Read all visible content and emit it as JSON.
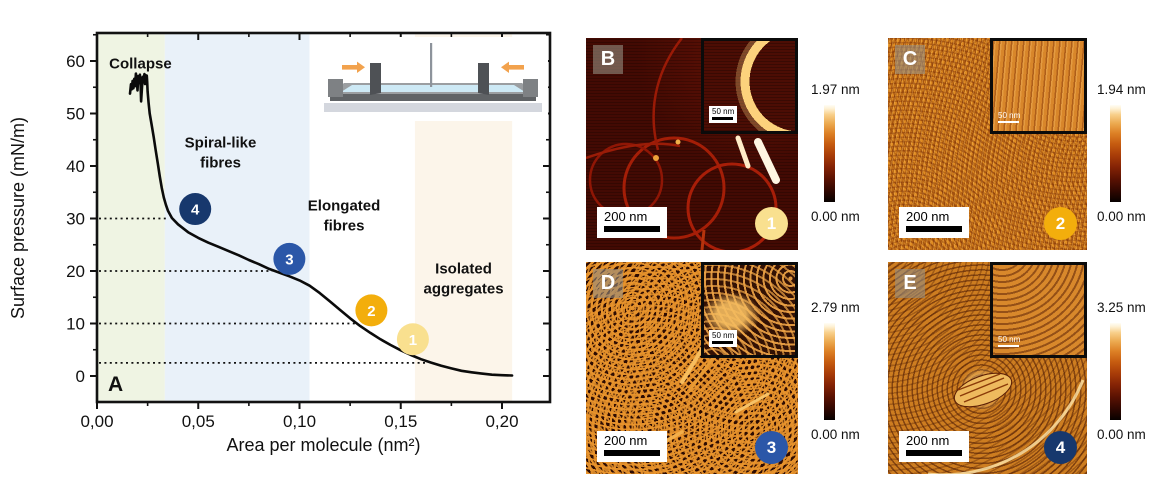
{
  "chart_data": {
    "type": "line",
    "panel_label": "A",
    "xlabel": "Area per molecule (nm²)",
    "ylabel": "Surface pressure (mN/m)",
    "xlim": [
      0,
      0.224
    ],
    "ylim": [
      -5,
      65
    ],
    "x_tick_values": [
      0,
      0.05,
      0.1,
      0.15,
      0.2
    ],
    "x_tick_labels": [
      "0,00",
      "0,05",
      "0,10",
      "0,15",
      "0,20"
    ],
    "x_minor_ticks": [
      0.025,
      0.075,
      0.125,
      0.175
    ],
    "y_tick_values": [
      0,
      10,
      20,
      30,
      40,
      50,
      60
    ],
    "y_tick_labels": [
      "0",
      "10",
      "20",
      "30",
      "40",
      "50",
      "60"
    ],
    "y_minor_ticks": [
      5,
      15,
      25,
      35,
      45,
      55,
      65
    ],
    "regions": [
      {
        "label": "Collapse",
        "x0": 0,
        "x1": 0.0335,
        "band_color": "#eff4e3",
        "text_color": "#8bbf41",
        "text_x": 0.006,
        "text_y": 58.6,
        "align": "start"
      },
      {
        "label": "Spiral-like\nfibres",
        "x0": 0.0335,
        "x1": 0.105,
        "band_color": "#e9f1f9",
        "text_color": "#3a67ad",
        "text_x": 0.061,
        "text_y": 43.5,
        "align": "middle"
      },
      {
        "label": "Elongated\nfibres",
        "x0": 0.105,
        "x1": 0.157,
        "band_color": "#ffffff",
        "text_color": "#edb41d",
        "text_x": 0.122,
        "text_y": 31.5,
        "align": "middle"
      },
      {
        "label": "Isolated\naggregates",
        "x0": 0.157,
        "x1": 0.205,
        "band_color": "#fcf5ea",
        "text_color": "#e5771f",
        "text_x": 0.181,
        "text_y": 19.5,
        "align": "middle"
      }
    ],
    "guides": [
      {
        "y": 30,
        "x_end": 0.0345
      },
      {
        "y": 20,
        "x_end": 0.0865
      },
      {
        "y": 10,
        "x_end": 0.128
      },
      {
        "y": 2.5,
        "x_end": 0.162
      }
    ],
    "markers": [
      {
        "label": "1",
        "x": 0.156,
        "y": 7.0,
        "color": "#f9e08f"
      },
      {
        "label": "2",
        "x": 0.1355,
        "y": 12.5,
        "color": "#f3ae0c"
      },
      {
        "label": "3",
        "x": 0.095,
        "y": 22.3,
        "color": "#2b57a8"
      },
      {
        "label": "4",
        "x": 0.0485,
        "y": 31.8,
        "color": "#17386d"
      }
    ],
    "series": [
      {
        "name": "compression isotherm",
        "points": [
          [
            0.205,
            0.1
          ],
          [
            0.2,
            0.15
          ],
          [
            0.195,
            0.25
          ],
          [
            0.19,
            0.45
          ],
          [
            0.185,
            0.7
          ],
          [
            0.18,
            1.0
          ],
          [
            0.175,
            1.45
          ],
          [
            0.17,
            1.95
          ],
          [
            0.165,
            2.55
          ],
          [
            0.16,
            3.2
          ],
          [
            0.155,
            4.0
          ],
          [
            0.15,
            4.9
          ],
          [
            0.145,
            5.9
          ],
          [
            0.14,
            7.0
          ],
          [
            0.135,
            8.2
          ],
          [
            0.13,
            9.5
          ],
          [
            0.125,
            11.0
          ],
          [
            0.12,
            12.6
          ],
          [
            0.115,
            14.2
          ],
          [
            0.11,
            15.8
          ],
          [
            0.105,
            17.2
          ],
          [
            0.1,
            18.2
          ],
          [
            0.095,
            19.0
          ],
          [
            0.09,
            19.7
          ],
          [
            0.085,
            20.4
          ],
          [
            0.08,
            21.3
          ],
          [
            0.075,
            22.1
          ],
          [
            0.07,
            23.0
          ],
          [
            0.065,
            23.8
          ],
          [
            0.06,
            24.6
          ],
          [
            0.055,
            25.4
          ],
          [
            0.05,
            26.3
          ],
          [
            0.045,
            27.4
          ],
          [
            0.04,
            28.9
          ],
          [
            0.037,
            30.1
          ],
          [
            0.035,
            31.5
          ],
          [
            0.034,
            32.6
          ],
          [
            0.033,
            34.0
          ],
          [
            0.032,
            35.8
          ],
          [
            0.031,
            38.0
          ],
          [
            0.03,
            40.5
          ],
          [
            0.029,
            43.0
          ],
          [
            0.028,
            45.5
          ],
          [
            0.027,
            47.8
          ],
          [
            0.026,
            50.0
          ],
          [
            0.0255,
            52.0
          ],
          [
            0.025,
            54.2
          ],
          [
            0.0248,
            56.0
          ],
          [
            0.0246,
            57.2
          ],
          [
            0.0243,
            56.0
          ],
          [
            0.024,
            57.3
          ],
          [
            0.0237,
            55.6
          ],
          [
            0.0234,
            57.5
          ],
          [
            0.023,
            56.2
          ],
          [
            0.0226,
            57.0
          ],
          [
            0.0222,
            55.0
          ],
          [
            0.0218,
            52.3
          ],
          [
            0.0215,
            56.3
          ],
          [
            0.0212,
            57.4
          ],
          [
            0.0208,
            55.8
          ],
          [
            0.0204,
            57.1
          ],
          [
            0.02,
            54.4
          ],
          [
            0.0196,
            56.9
          ],
          [
            0.0192,
            57.6
          ],
          [
            0.0188,
            55.2
          ],
          [
            0.0184,
            56.6
          ],
          [
            0.018,
            54.8
          ],
          [
            0.0176,
            56.2
          ],
          [
            0.0172,
            54.6
          ],
          [
            0.0168,
            55.6
          ],
          [
            0.0163,
            53.8
          ]
        ]
      }
    ]
  },
  "afm": {
    "panels": [
      {
        "id": "B",
        "label": "B",
        "badge": "1",
        "badge_color": "#f9e08f",
        "scale_label": "200 nm",
        "inset_scale_label": "50 nm",
        "colorbar_max": "1.97 nm",
        "colorbar_min": "0.00 nm"
      },
      {
        "id": "C",
        "label": "C",
        "badge": "2",
        "badge_color": "#f3ae0c",
        "scale_label": "200 nm",
        "inset_scale_label": "50 nm",
        "colorbar_max": "1.94 nm",
        "colorbar_min": "0.00 nm"
      },
      {
        "id": "D",
        "label": "D",
        "badge": "3",
        "badge_color": "#2b57a8",
        "scale_label": "200 nm",
        "inset_scale_label": "50 nm",
        "colorbar_max": "2.79 nm",
        "colorbar_min": "0.00 nm"
      },
      {
        "id": "E",
        "label": "E",
        "badge": "4",
        "badge_color": "#17386d",
        "scale_label": "200 nm",
        "inset_scale_label": "50 nm",
        "colorbar_max": "3.25 nm",
        "colorbar_min": "0.00 nm"
      }
    ]
  }
}
